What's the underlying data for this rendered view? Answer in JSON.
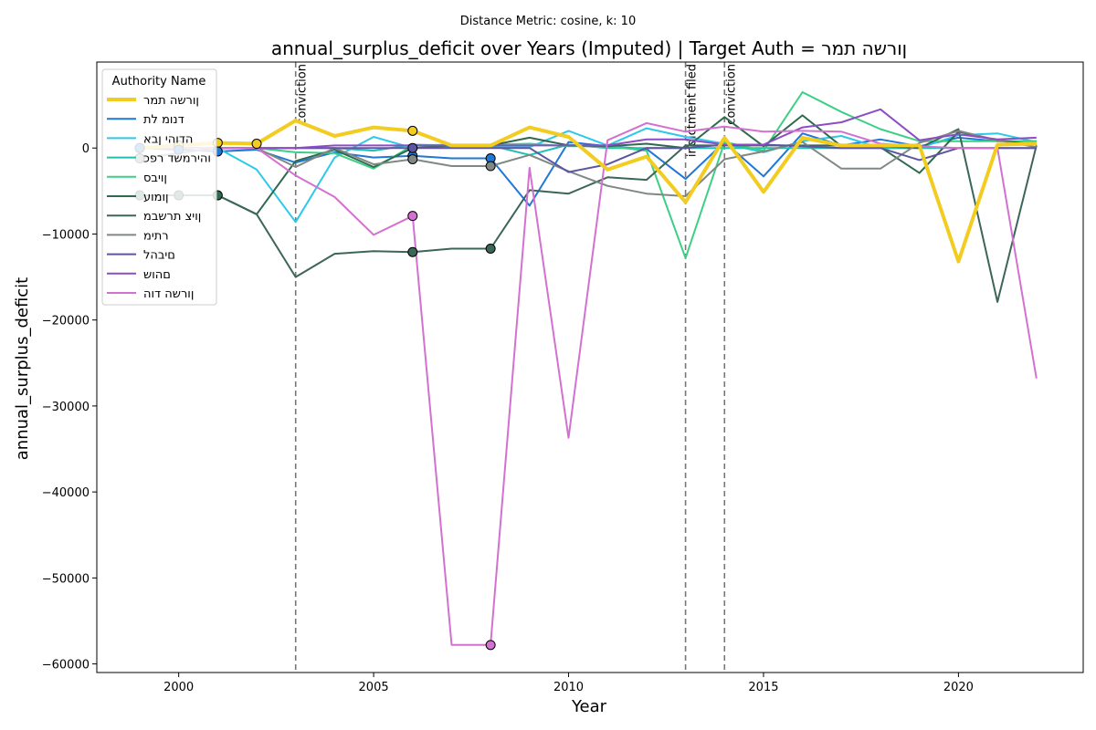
{
  "chart_data": {
    "type": "line",
    "suptitle": "Distance Metric: cosine, k: 10",
    "title": "annual_surplus_deficit over Years (Imputed) | Target Auth = ןורשה תמר",
    "xlabel": "Year",
    "ylabel": "annual_surplus_deficit",
    "xlim": [
      1997.9,
      2023.2
    ],
    "ylim": [
      -61000,
      10000
    ],
    "xticks": [
      2000,
      2005,
      2010,
      2015,
      2020
    ],
    "yticks": [
      0,
      -10000,
      -20000,
      -30000,
      -40000,
      -50000,
      -60000
    ],
    "grid": false,
    "legend": {
      "title": "Authority Name",
      "placement": "top-left"
    },
    "events": [
      {
        "x": 2003,
        "label": "conviction"
      },
      {
        "x": 2013,
        "label": "indictment filed"
      },
      {
        "x": 2014,
        "label": "conviction"
      }
    ],
    "x": [
      1999,
      2000,
      2001,
      2002,
      2003,
      2004,
      2005,
      2006,
      2007,
      2008,
      2009,
      2010,
      2011,
      2012,
      2013,
      2014,
      2015,
      2016,
      2017,
      2018,
      2019,
      2020,
      2021,
      2022
    ],
    "series": [
      {
        "name": "ןורשה תמר",
        "color": "#f2cc20",
        "width": 4,
        "values": [
          0,
          300,
          600,
          500,
          3200,
          1400,
          2400,
          2000,
          300,
          300,
          2400,
          1300,
          -2500,
          -1000,
          -6300,
          1200,
          -5100,
          1200,
          300,
          300,
          300,
          -13200,
          400,
          500
        ],
        "imputed": [
          1999,
          2000,
          2001,
          2002,
          2006
        ]
      },
      {
        "name": "דנומ לת",
        "color": "#1f77d6",
        "width": 2,
        "values": [
          0,
          -200,
          -400,
          -200,
          -1700,
          -500,
          -1100,
          -900,
          -1200,
          -1200,
          -6700,
          700,
          200,
          -100,
          -3600,
          700,
          -3300,
          1700,
          300,
          1000,
          200,
          1200,
          800,
          800
        ],
        "imputed": [
          1999,
          2000,
          2001,
          2006,
          2008
        ]
      },
      {
        "name": "הדוהי ןבא",
        "color": "#2ec8e8",
        "width": 2,
        "values": [
          0,
          0,
          0,
          -2500,
          -8600,
          -1100,
          1300,
          0,
          100,
          100,
          100,
          2000,
          300,
          2300,
          1300,
          500,
          -500,
          800,
          1400,
          0,
          0,
          1500,
          1700,
          700
        ],
        "imputed": []
      },
      {
        "name": "והירמשד רפכ",
        "color": "#20c0b0",
        "width": 2,
        "values": [
          0,
          0,
          0,
          0,
          0,
          0,
          -300,
          400,
          300,
          300,
          -800,
          400,
          0,
          0,
          0,
          0,
          0,
          0,
          0,
          0,
          0,
          0,
          0,
          0
        ],
        "imputed": []
      },
      {
        "name": "ןויבס",
        "color": "#3ccf85",
        "width": 2,
        "values": [
          0,
          0,
          0,
          0,
          -500,
          -600,
          -2400,
          300,
          400,
          400,
          500,
          200,
          200,
          -300,
          -12800,
          700,
          -300,
          6500,
          4200,
          2200,
          800,
          800,
          800,
          800
        ],
        "imputed": []
      },
      {
        "name": "ןומוע",
        "color": "#2f6a4f",
        "width": 2,
        "values": [
          -5500,
          -5500,
          -5500,
          -7700,
          -1500,
          -200,
          -2200,
          0,
          300,
          300,
          1200,
          300,
          200,
          500,
          0,
          3600,
          200,
          3800,
          200,
          100,
          -2900,
          1900,
          900,
          400
        ],
        "imputed": [
          1999,
          2000,
          2001
        ]
      },
      {
        "name": "ןויצ תרשבמ",
        "color": "#3c6658",
        "width": 2,
        "values": [
          -5500,
          -5500,
          -5500,
          -7700,
          -15000,
          -12300,
          -12000,
          -12100,
          -11700,
          -11700,
          -4900,
          -5300,
          -3400,
          -3700,
          300,
          300,
          300,
          300,
          300,
          200,
          0,
          2200,
          -17900,
          300
        ],
        "imputed": [
          2006,
          2008
        ]
      },
      {
        "name": "רתימ",
        "color": "#808884",
        "width": 2,
        "values": [
          -1200,
          -600,
          0,
          0,
          -2200,
          0,
          -1900,
          -1300,
          -2100,
          -2100,
          -800,
          -2700,
          -4400,
          -5300,
          -5600,
          -1300,
          -400,
          700,
          -2400,
          -2400,
          600,
          2000,
          900,
          100
        ],
        "imputed": [
          1999,
          2006,
          2008
        ]
      },
      {
        "name": "םיבהל",
        "color": "#5e55a0",
        "width": 2,
        "values": [
          0,
          0,
          0,
          0,
          0,
          0,
          0,
          0,
          0,
          0,
          0,
          -2800,
          -1900,
          0,
          0,
          400,
          400,
          200,
          0,
          0,
          -1400,
          0,
          0,
          0
        ],
        "imputed": [
          2006
        ]
      },
      {
        "name": "םהוש",
        "color": "#8d4cc4",
        "width": 2,
        "values": [
          0,
          0,
          0,
          0,
          0,
          300,
          300,
          300,
          300,
          300,
          300,
          300,
          300,
          1000,
          1000,
          400,
          400,
          2400,
          3000,
          4500,
          900,
          1600,
          1000,
          1200
        ],
        "imputed": []
      },
      {
        "name": "ןורשה דוה",
        "color": "#d371d0",
        "width": 2,
        "values": [
          0,
          0,
          0,
          0,
          -3200,
          -5700,
          -10100,
          -7900,
          -57800,
          -57800,
          -2300,
          -33700,
          900,
          2900,
          1900,
          2500,
          1900,
          2000,
          1900,
          500,
          200,
          0,
          0,
          -26800
        ],
        "imputed": [
          2006,
          2008
        ]
      }
    ]
  }
}
